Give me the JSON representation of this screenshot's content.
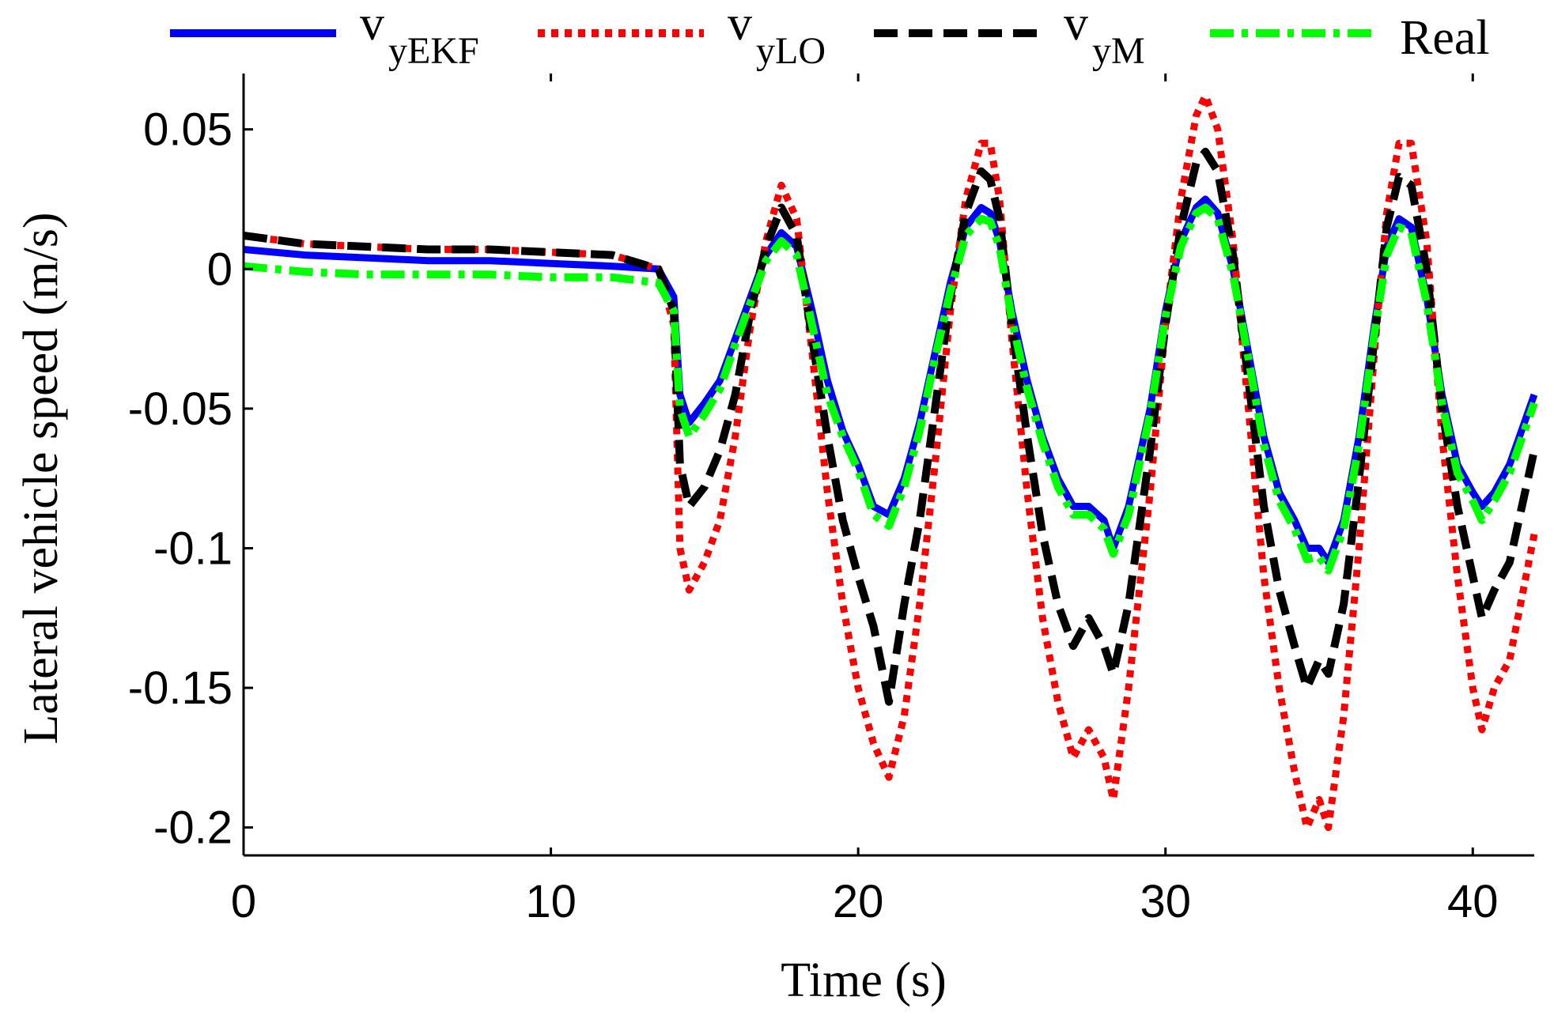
{
  "chart_data": {
    "type": "line",
    "title": "",
    "xlabel": "Time (s)",
    "ylabel": "Lateral vehicle speed (m/s)",
    "xlim": [
      0,
      42
    ],
    "ylim": [
      -0.21,
      0.07
    ],
    "xticks": [
      0,
      10,
      20,
      30,
      40
    ],
    "xtick_labels": [
      "0",
      "10",
      "20",
      "30",
      "40"
    ],
    "yticks": [
      0.05,
      0,
      -0.05,
      -0.1,
      -0.15,
      -0.2
    ],
    "ytick_labels": [
      "0.05",
      "0",
      "-0.05",
      "-0.1",
      "-0.15",
      "-0.2"
    ],
    "grid": false,
    "legend_position": "top, above plot",
    "series": [
      {
        "name": "v_yEKF",
        "label_main": "v",
        "label_sub": "yEKF",
        "color": "#0000ff",
        "style": "solid",
        "x": [
          0,
          2,
          4,
          6,
          8,
          10,
          12,
          13.5,
          14,
          14.2,
          14.5,
          15,
          15.5,
          16,
          16.5,
          17,
          17.5,
          18,
          18.5,
          19,
          19.5,
          20,
          20.5,
          21,
          21.5,
          22,
          22.5,
          23,
          23.5,
          24,
          24.3,
          24.6,
          25,
          25.5,
          26,
          26.5,
          27,
          27.5,
          28,
          28.3,
          28.8,
          29.5,
          30,
          30.5,
          31,
          31.3,
          31.7,
          32.2,
          32.7,
          33.2,
          33.7,
          34.2,
          34.6,
          35,
          35.3,
          35.8,
          36.3,
          36.8,
          37.2,
          37.6,
          38,
          38.5,
          39,
          39.5,
          40,
          40.3,
          40.7,
          41.2,
          42
        ],
        "y": [
          0.007,
          0.005,
          0.004,
          0.003,
          0.003,
          0.002,
          0.001,
          0.0,
          -0.01,
          -0.045,
          -0.055,
          -0.048,
          -0.04,
          -0.025,
          -0.01,
          0.005,
          0.013,
          0.008,
          -0.015,
          -0.04,
          -0.058,
          -0.07,
          -0.085,
          -0.088,
          -0.075,
          -0.055,
          -0.03,
          -0.005,
          0.015,
          0.022,
          0.02,
          0.01,
          -0.015,
          -0.04,
          -0.06,
          -0.075,
          -0.085,
          -0.085,
          -0.09,
          -0.1,
          -0.085,
          -0.05,
          -0.015,
          0.01,
          0.022,
          0.025,
          0.02,
          0.0,
          -0.03,
          -0.06,
          -0.08,
          -0.09,
          -0.1,
          -0.1,
          -0.105,
          -0.09,
          -0.06,
          -0.02,
          0.008,
          0.018,
          0.015,
          -0.01,
          -0.045,
          -0.07,
          -0.08,
          -0.085,
          -0.08,
          -0.07,
          -0.045
        ]
      },
      {
        "name": "v_yLO",
        "label_main": "v",
        "label_sub": "yLO",
        "color": "#ff0000",
        "style": "dotted",
        "x": [
          0,
          2,
          4,
          6,
          8,
          10,
          12,
          13.5,
          14,
          14.2,
          14.5,
          15,
          15.5,
          16,
          16.5,
          17,
          17.5,
          18,
          18.5,
          19,
          19.5,
          20,
          20.5,
          21,
          21.5,
          22,
          22.5,
          23,
          23.5,
          24,
          24.3,
          24.6,
          25,
          25.5,
          26,
          26.5,
          27,
          27.5,
          28,
          28.3,
          28.8,
          29.5,
          30,
          30.5,
          31,
          31.3,
          31.7,
          32.2,
          32.7,
          33.2,
          33.7,
          34.2,
          34.6,
          35,
          35.3,
          35.8,
          36.3,
          36.8,
          37.2,
          37.6,
          38,
          38.5,
          39,
          39.5,
          40,
          40.3,
          40.7,
          41.2,
          42
        ],
        "y": [
          0.012,
          0.009,
          0.008,
          0.007,
          0.007,
          0.006,
          0.005,
          0.0,
          -0.02,
          -0.1,
          -0.115,
          -0.105,
          -0.09,
          -0.06,
          -0.02,
          0.01,
          0.03,
          0.018,
          -0.03,
          -0.08,
          -0.12,
          -0.15,
          -0.17,
          -0.182,
          -0.16,
          -0.12,
          -0.07,
          -0.015,
          0.025,
          0.045,
          0.045,
          0.025,
          -0.025,
          -0.08,
          -0.125,
          -0.155,
          -0.175,
          -0.165,
          -0.175,
          -0.19,
          -0.15,
          -0.08,
          -0.02,
          0.025,
          0.055,
          0.062,
          0.05,
          0.01,
          -0.05,
          -0.11,
          -0.15,
          -0.18,
          -0.2,
          -0.19,
          -0.2,
          -0.16,
          -0.1,
          -0.03,
          0.02,
          0.045,
          0.045,
          0.01,
          -0.06,
          -0.11,
          -0.15,
          -0.165,
          -0.15,
          -0.14,
          -0.095
        ]
      },
      {
        "name": "v_yM",
        "label_main": "v",
        "label_sub": "yM",
        "color": "#000000",
        "style": "dashed",
        "x": [
          0,
          2,
          4,
          6,
          8,
          10,
          12,
          13.5,
          14,
          14.2,
          14.5,
          15,
          15.5,
          16,
          16.5,
          17,
          17.5,
          18,
          18.5,
          19,
          19.5,
          20,
          20.5,
          21,
          21.5,
          22,
          22.5,
          23,
          23.5,
          24,
          24.3,
          24.6,
          25,
          25.5,
          26,
          26.5,
          27,
          27.5,
          28,
          28.3,
          28.8,
          29.5,
          30,
          30.5,
          31,
          31.3,
          31.7,
          32.2,
          32.7,
          33.2,
          33.7,
          34.2,
          34.6,
          35,
          35.3,
          35.8,
          36.3,
          36.8,
          37.2,
          37.6,
          38,
          38.5,
          39,
          39.5,
          40,
          40.3,
          40.7,
          41.2,
          42
        ],
        "y": [
          0.012,
          0.009,
          0.008,
          0.007,
          0.007,
          0.006,
          0.005,
          0.0,
          -0.015,
          -0.07,
          -0.085,
          -0.078,
          -0.065,
          -0.045,
          -0.015,
          0.008,
          0.022,
          0.012,
          -0.025,
          -0.06,
          -0.09,
          -0.11,
          -0.128,
          -0.155,
          -0.12,
          -0.09,
          -0.05,
          -0.01,
          0.02,
          0.035,
          0.032,
          0.018,
          -0.02,
          -0.06,
          -0.095,
          -0.12,
          -0.135,
          -0.125,
          -0.135,
          -0.145,
          -0.12,
          -0.065,
          -0.02,
          0.015,
          0.038,
          0.042,
          0.035,
          0.005,
          -0.04,
          -0.085,
          -0.115,
          -0.135,
          -0.15,
          -0.14,
          -0.145,
          -0.12,
          -0.075,
          -0.025,
          0.015,
          0.033,
          0.03,
          0.0,
          -0.05,
          -0.085,
          -0.11,
          -0.125,
          -0.115,
          -0.105,
          -0.065
        ]
      },
      {
        "name": "Real",
        "label_main": "Real",
        "label_sub": "",
        "color": "#00ff00",
        "style": "dashdot",
        "x": [
          0,
          2,
          4,
          6,
          8,
          10,
          12,
          13.5,
          14,
          14.2,
          14.5,
          15,
          15.5,
          16,
          16.5,
          17,
          17.5,
          18,
          18.5,
          19,
          19.5,
          20,
          20.5,
          21,
          21.5,
          22,
          22.5,
          23,
          23.5,
          24,
          24.3,
          24.6,
          25,
          25.5,
          26,
          26.5,
          27,
          27.5,
          28,
          28.3,
          28.8,
          29.5,
          30,
          30.5,
          31,
          31.3,
          31.7,
          32.2,
          32.7,
          33.2,
          33.7,
          34.2,
          34.6,
          35,
          35.3,
          35.8,
          36.3,
          36.8,
          37.2,
          37.6,
          38,
          38.5,
          39,
          39.5,
          40,
          40.3,
          40.7,
          41.2,
          42
        ],
        "y": [
          0.001,
          -0.001,
          -0.002,
          -0.002,
          -0.002,
          -0.003,
          -0.003,
          -0.005,
          -0.015,
          -0.05,
          -0.06,
          -0.052,
          -0.043,
          -0.027,
          -0.012,
          0.003,
          0.01,
          0.005,
          -0.02,
          -0.045,
          -0.06,
          -0.072,
          -0.088,
          -0.092,
          -0.078,
          -0.058,
          -0.032,
          -0.008,
          0.012,
          0.018,
          0.017,
          0.008,
          -0.018,
          -0.043,
          -0.062,
          -0.078,
          -0.088,
          -0.088,
          -0.093,
          -0.102,
          -0.088,
          -0.052,
          -0.017,
          0.008,
          0.02,
          0.022,
          0.018,
          -0.002,
          -0.032,
          -0.063,
          -0.083,
          -0.093,
          -0.104,
          -0.103,
          -0.108,
          -0.093,
          -0.063,
          -0.023,
          0.005,
          0.015,
          0.013,
          -0.012,
          -0.048,
          -0.073,
          -0.083,
          -0.09,
          -0.083,
          -0.073,
          -0.048
        ]
      }
    ]
  }
}
